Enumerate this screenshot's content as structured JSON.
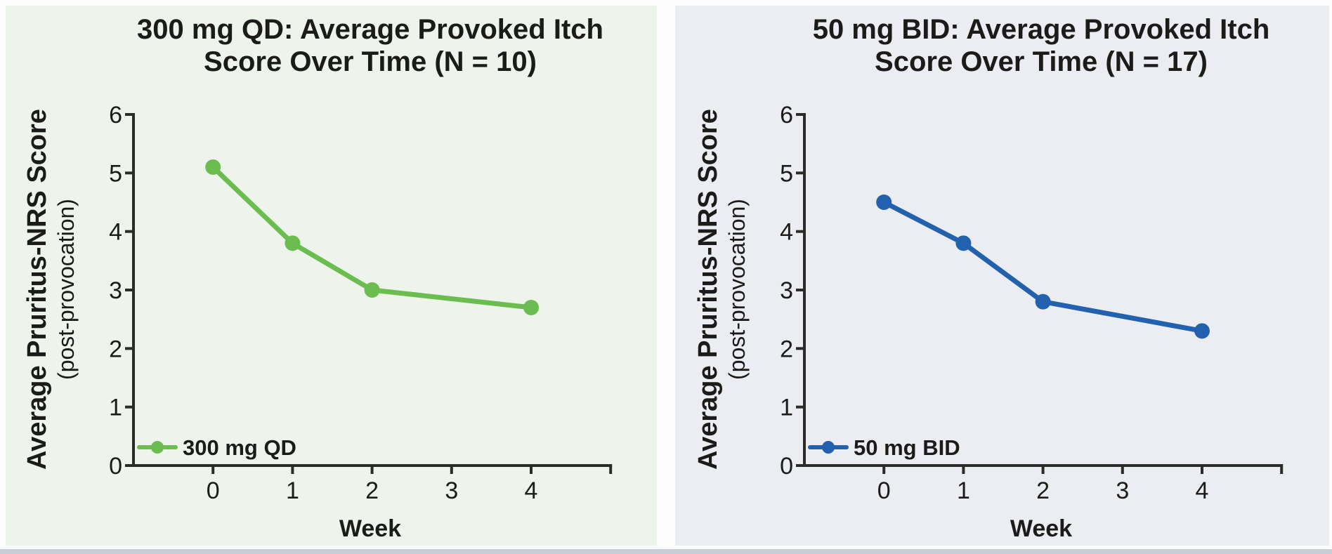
{
  "figure": {
    "canvas_bg": "#fcfdfc",
    "bottom_strip_color": "#c9cdd5",
    "text_color": "#1b1b19",
    "axis_color": "#2b2b28"
  },
  "chart_data": [
    {
      "type": "line",
      "title": "300 mg QD: Average Provoked Itch Score Over Time (N = 10)",
      "title_lines": [
        "300 mg QD: Average Provoked Itch",
        "Score Over Time (N = 10)"
      ],
      "xlabel": "Week",
      "ylabel": "Average Pruritus-NRS Score",
      "ylabel_sub": "(post-provocation)",
      "x_tick_labels": [
        "0",
        "1",
        "2",
        "3",
        "4"
      ],
      "y_tick_labels": [
        "0",
        "1",
        "2",
        "3",
        "4",
        "5",
        "6"
      ],
      "xlim": [
        -1,
        5
      ],
      "ylim": [
        0,
        6
      ],
      "grid": false,
      "legend_position": "lower-left",
      "background": "#eef4eb",
      "series": [
        {
          "name": "300 mg QD",
          "color": "#6abd4e",
          "x": [
            0,
            1,
            2,
            4
          ],
          "values": [
            5.1,
            3.8,
            3.0,
            2.7
          ]
        }
      ]
    },
    {
      "type": "line",
      "title": "50 mg BID: Average Provoked Itch Score Over Time (N = 17)",
      "title_lines": [
        "50 mg BID: Average Provoked Itch",
        "Score Over Time (N = 17)"
      ],
      "xlabel": "Week",
      "ylabel": "Average Pruritus-NRS Score",
      "ylabel_sub": "(post-provocation)",
      "x_tick_labels": [
        "0",
        "1",
        "2",
        "3",
        "4"
      ],
      "y_tick_labels": [
        "0",
        "1",
        "2",
        "3",
        "4",
        "5",
        "6"
      ],
      "xlim": [
        -1,
        5
      ],
      "ylim": [
        0,
        6
      ],
      "grid": false,
      "legend_position": "lower-left",
      "background": "#ebedf2",
      "series": [
        {
          "name": "50 mg BID",
          "color": "#2161ae",
          "x": [
            0,
            1,
            2,
            4
          ],
          "values": [
            4.5,
            3.8,
            2.8,
            2.3
          ]
        }
      ]
    }
  ]
}
